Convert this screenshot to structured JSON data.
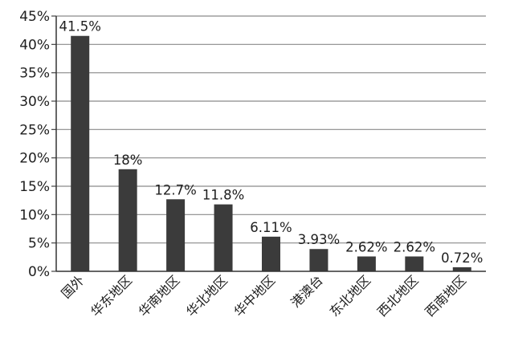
{
  "chart_data": {
    "type": "bar",
    "categories": [
      "国外",
      "华东地区",
      "华南地区",
      "华北地区",
      "华中地区",
      "港澳台",
      "东北地区",
      "西北地区",
      "西南地区"
    ],
    "values": [
      41.5,
      18,
      12.7,
      11.8,
      6.11,
      3.93,
      2.62,
      2.62,
      0.72
    ],
    "data_labels": [
      "41.5%",
      "18%",
      "12.7%",
      "11.8%",
      "6.11%",
      "3.93%",
      "2.62%",
      "2.62%",
      "0.72%"
    ],
    "y_ticks": [
      "0%",
      "5%",
      "10%",
      "15%",
      "20%",
      "25%",
      "30%",
      "35%",
      "40%",
      "45%"
    ],
    "ylim": [
      0,
      45
    ],
    "grid": true,
    "legend": "none",
    "bar_color": "#3b3b3b",
    "grid_color": "#8a8a8a"
  }
}
